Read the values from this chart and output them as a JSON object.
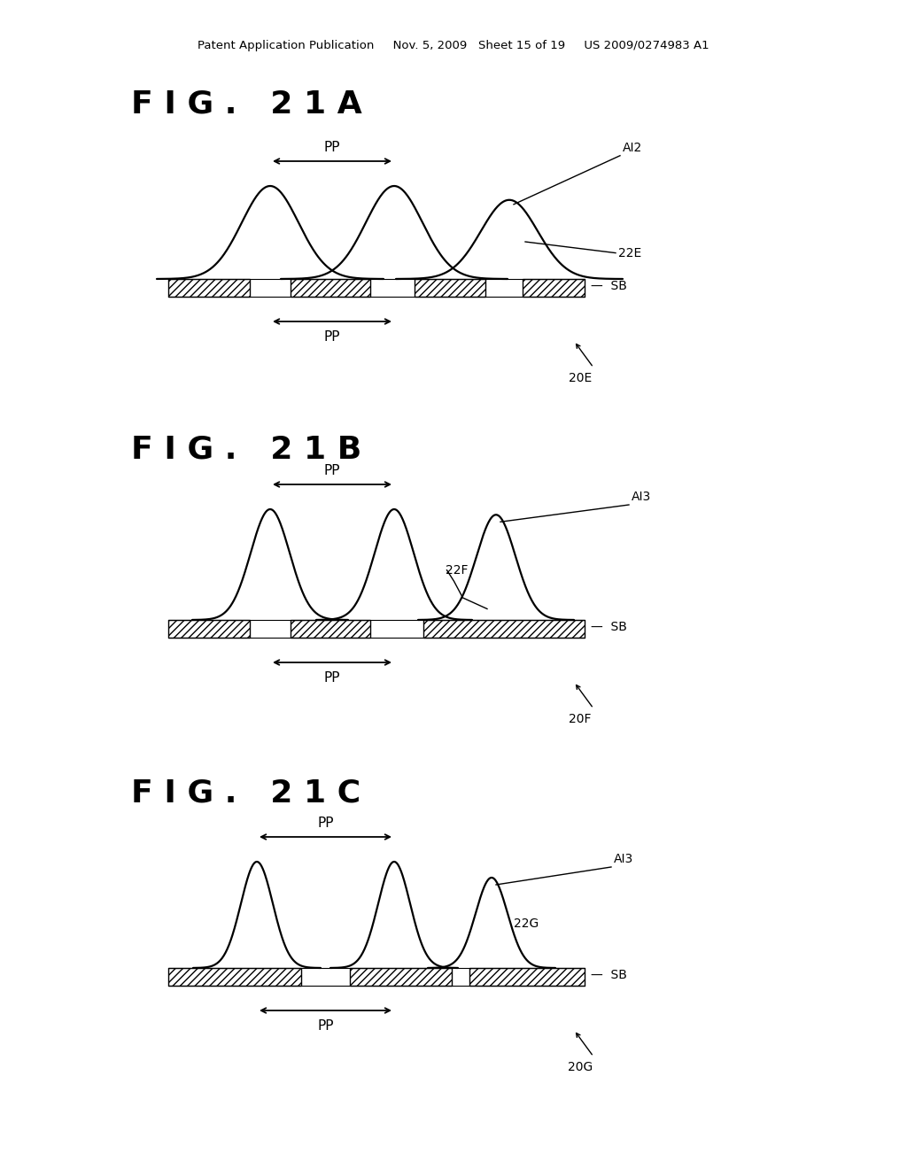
{
  "background_color": "#ffffff",
  "header_text": "Patent Application Publication     Nov. 5, 2009   Sheet 15 of 19     US 2009/0274983 A1",
  "header_fontsize": 9.5,
  "fig_labels": [
    "F I G .   2 1 A",
    "F I G .   2 1 B",
    "F I G .   2 1 C"
  ],
  "fig_label_fontsize": 26,
  "panel_labels_22": [
    "22E",
    "22F",
    "22G"
  ],
  "panel_labels_20": [
    "20E",
    "20F",
    "20G"
  ],
  "panel_labels_ai": [
    "AI2",
    "AI3",
    "AI3"
  ],
  "panel_labels_sb": "SB",
  "pp_label": "PP",
  "lw_peak": 1.6,
  "lw_bar": 1.2,
  "lw_arrow": 1.3
}
